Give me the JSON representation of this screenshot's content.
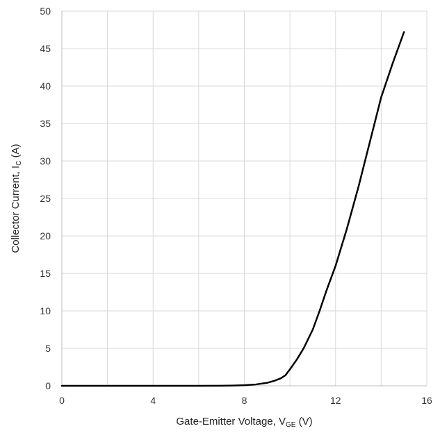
{
  "chart_data": {
    "type": "line",
    "xlabel": {
      "main": "Gate-Emitter Voltage, V",
      "sub": "GE",
      "unit": " (V)"
    },
    "ylabel": {
      "main": "Collector Current, I",
      "sub": "C",
      "unit": " (A)"
    },
    "xlim": [
      0,
      16
    ],
    "ylim": [
      0,
      50
    ],
    "x_ticks": [
      0,
      4,
      8,
      12,
      16
    ],
    "y_ticks": [
      0,
      5,
      10,
      15,
      20,
      25,
      30,
      35,
      40,
      45,
      50
    ],
    "x_minor_grid_step": 2,
    "grid": true,
    "legend": "none",
    "line_color": "#000000",
    "series": [
      {
        "x": [
          0,
          2,
          4,
          6,
          7,
          7.5,
          8,
          8.5,
          9,
          9.3,
          9.6,
          9.8,
          10,
          10.3,
          10.6,
          11,
          11.3,
          11.6,
          12,
          12.5,
          13,
          13.5,
          14,
          14.5,
          15
        ],
        "values": [
          0,
          0,
          0,
          0,
          0.01,
          0.03,
          0.08,
          0.18,
          0.4,
          0.65,
          1.0,
          1.4,
          2.2,
          3.5,
          5.0,
          7.5,
          10.0,
          12.7,
          16.0,
          21.0,
          26.5,
          32.5,
          38.5,
          43.0,
          47.2
        ]
      }
    ]
  }
}
